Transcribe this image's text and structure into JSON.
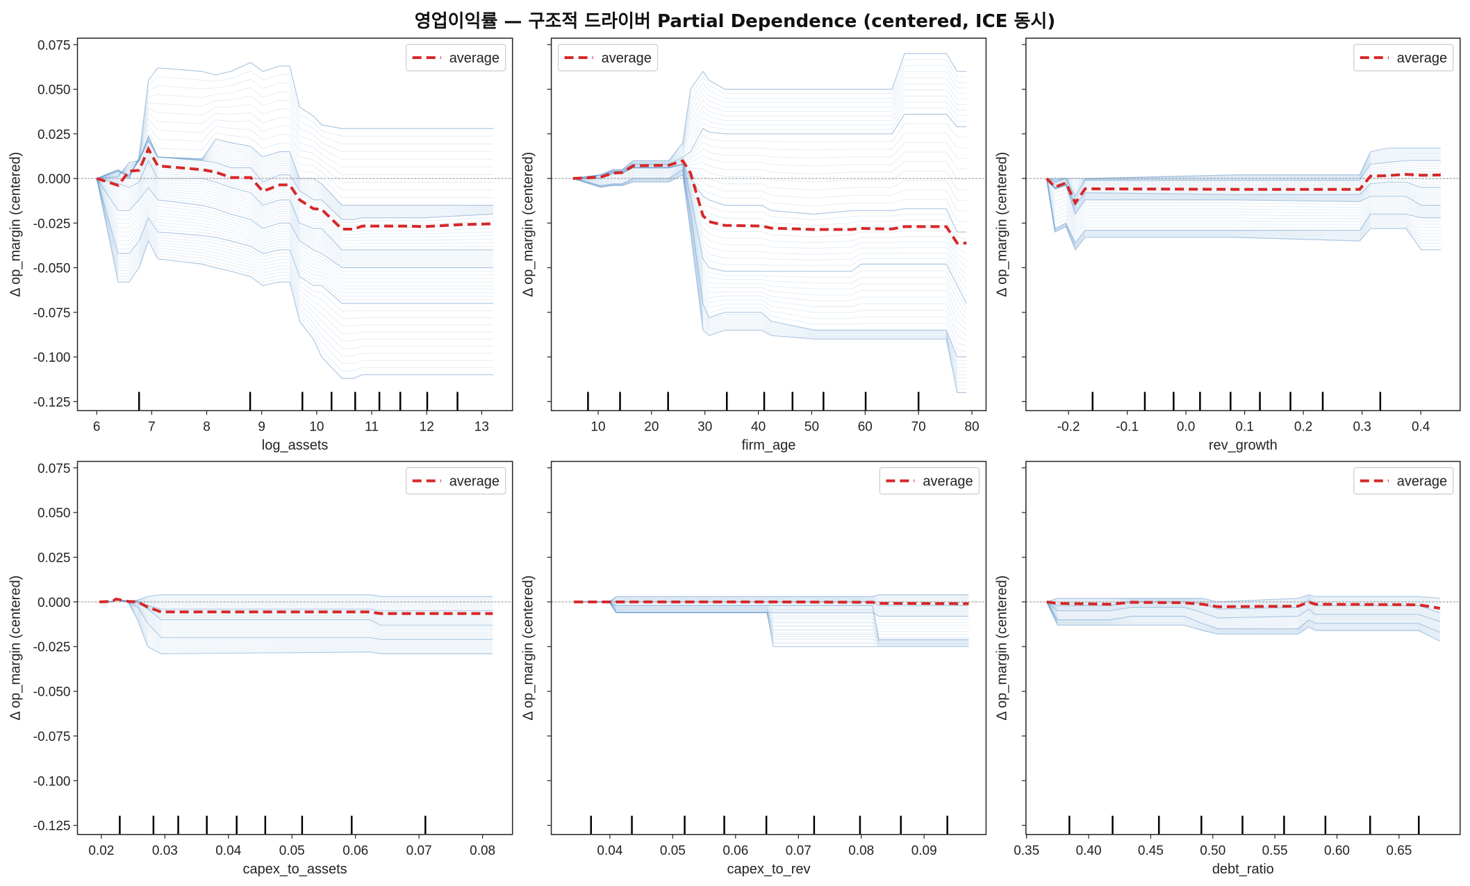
{
  "title": "영업이익률 — 구조적 드라이버 Partial Dependence (centered, ICE 동시)",
  "colors": {
    "ice": "#6699cc",
    "average": "#d62728",
    "zero_line": "#888888",
    "rug": "#000000"
  },
  "chart_data": [
    {
      "type": "line",
      "xlabel": "log_assets",
      "ylabel": "Δ op_margin (centered)",
      "xlim": [
        5.65,
        13.56
      ],
      "ylim": [
        -0.1301,
        0.0786
      ],
      "xticks": [
        6,
        7,
        8,
        9,
        10,
        11,
        12,
        13
      ],
      "xtick_labels": [
        "6",
        "7",
        "8",
        "9",
        "10",
        "11",
        "12",
        "13"
      ],
      "yticks": [
        0.075,
        0.05,
        0.025,
        0,
        -0.025,
        -0.05,
        -0.075,
        -0.1,
        -0.125
      ],
      "ytick_labels": [
        "0.075",
        "0.050",
        "0.025",
        "0.000",
        "-0.025",
        "-0.050",
        "-0.075",
        "-0.100",
        "-0.125"
      ],
      "legend": {
        "label": "average",
        "placement": "upper right"
      },
      "zero_line": true,
      "average": {
        "x": [
          6.0,
          6.39,
          6.59,
          6.77,
          6.94,
          7.11,
          7.92,
          8.16,
          8.44,
          8.8,
          9.02,
          9.33,
          9.51,
          9.69,
          9.94,
          10.09,
          10.46,
          10.67,
          10.83,
          11.59,
          11.96,
          12.57,
          13.21
        ],
        "y": [
          0,
          -0.0039,
          0.0041,
          0.0046,
          0.0165,
          0.0071,
          0.0049,
          0.0036,
          0.0005,
          0.0005,
          -0.0072,
          -0.0036,
          -0.0036,
          -0.012,
          -0.0169,
          -0.0173,
          -0.0284,
          -0.0284,
          -0.0267,
          -0.0267,
          -0.027,
          -0.0259,
          -0.0254
        ]
      },
      "ice_curves": [
        [
          0,
          0.005,
          0,
          0.012,
          0.055,
          0.062,
          0.06,
          0.058,
          0.06,
          0.065,
          0.06,
          0.063,
          0.063,
          0.04,
          0.035,
          0.03,
          0.028,
          0.028,
          0.028,
          0.028,
          0.028,
          0.028,
          0.028
        ],
        [
          0,
          0.004,
          0.002,
          0.01,
          0.024,
          0.012,
          0.011,
          0.022,
          0.02,
          0.018,
          0.012,
          0.015,
          0.015,
          0,
          0,
          -0.003,
          -0.015,
          -0.015,
          -0.015,
          -0.015,
          -0.015,
          -0.015,
          -0.015
        ],
        [
          0,
          0.001,
          0.009,
          0.01,
          0.021,
          0.012,
          0.01,
          0.009,
          0.006,
          0.006,
          -0.002,
          0.002,
          0.002,
          -0.007,
          -0.012,
          -0.012,
          -0.023,
          -0.023,
          -0.022,
          -0.022,
          -0.022,
          -0.021,
          -0.02
        ],
        [
          0,
          -0.003,
          -0.005,
          -0.002,
          0.01,
          0,
          0,
          -0.002,
          -0.005,
          -0.008,
          -0.015,
          -0.012,
          -0.012,
          -0.025,
          -0.028,
          -0.028,
          -0.04,
          -0.04,
          -0.04,
          -0.04,
          -0.04,
          -0.04,
          -0.04
        ],
        [
          0,
          -0.018,
          -0.018,
          -0.012,
          -0.005,
          -0.012,
          -0.015,
          -0.017,
          -0.02,
          -0.023,
          -0.028,
          -0.025,
          -0.025,
          -0.035,
          -0.04,
          -0.042,
          -0.05,
          -0.05,
          -0.05,
          -0.05,
          -0.05,
          -0.05,
          -0.05
        ],
        [
          0,
          -0.042,
          -0.042,
          -0.035,
          -0.022,
          -0.03,
          -0.032,
          -0.033,
          -0.035,
          -0.038,
          -0.042,
          -0.04,
          -0.04,
          -0.055,
          -0.06,
          -0.06,
          -0.07,
          -0.07,
          -0.07,
          -0.07,
          -0.07,
          -0.07,
          -0.07
        ],
        [
          0,
          -0.058,
          -0.058,
          -0.05,
          -0.035,
          -0.045,
          -0.048,
          -0.05,
          -0.052,
          -0.055,
          -0.06,
          -0.058,
          -0.058,
          -0.08,
          -0.09,
          -0.1,
          -0.112,
          -0.112,
          -0.11,
          -0.11,
          -0.11,
          -0.11,
          -0.11
        ]
      ],
      "rug": [
        6.77,
        8.79,
        9.74,
        10.27,
        10.7,
        11.14,
        11.52,
        12.01,
        12.56
      ]
    },
    {
      "type": "line",
      "xlabel": "firm_age",
      "ylabel": "Δ op_margin (centered)",
      "xlim": [
        1.23,
        82.65
      ],
      "ylim": [
        -0.1301,
        0.0786
      ],
      "xticks": [
        10,
        20,
        30,
        40,
        50,
        60,
        70,
        80
      ],
      "xtick_labels": [
        "10",
        "20",
        "30",
        "40",
        "50",
        "60",
        "70",
        "80"
      ],
      "yticks": [
        0.075,
        0.05,
        0.025,
        0,
        -0.025,
        -0.05,
        -0.075,
        -0.1,
        -0.125
      ],
      "legend": {
        "label": "average",
        "placement": "upper left"
      },
      "zero_line": true,
      "average": {
        "x": [
          5.29,
          10.46,
          12.78,
          14.52,
          16.56,
          23.24,
          25.85,
          27.3,
          29.63,
          30.79,
          33.69,
          40.66,
          42.4,
          50.53,
          57.5,
          59.24,
          65.05,
          67.37,
          75.21,
          77.24,
          78.98
        ],
        "y": [
          0,
          0.0007,
          0.003,
          0.0033,
          0.0071,
          0.0074,
          0.0099,
          0.003,
          -0.0209,
          -0.0242,
          -0.0263,
          -0.0267,
          -0.0278,
          -0.0286,
          -0.0286,
          -0.028,
          -0.0283,
          -0.027,
          -0.027,
          -0.0362,
          -0.0362
        ]
      },
      "ice_curves": [
        [
          0,
          0.002,
          0.005,
          0.005,
          0.01,
          0.01,
          0.02,
          0.05,
          0.06,
          0.055,
          0.05,
          0.05,
          0.05,
          0.05,
          0.05,
          0.05,
          0.05,
          0.07,
          0.07,
          0.06,
          0.06
        ],
        [
          0,
          0.002,
          0.004,
          0.004,
          0.008,
          0.008,
          0.012,
          0.015,
          0.028,
          0.026,
          0.025,
          0.025,
          0.025,
          0.025,
          0.025,
          0.025,
          0.025,
          0.036,
          0.036,
          0.029,
          0.029
        ],
        [
          0,
          0,
          0.003,
          0.003,
          0.006,
          0.006,
          0.008,
          0,
          -0.01,
          -0.012,
          -0.015,
          -0.015,
          -0.018,
          -0.02,
          -0.018,
          -0.018,
          -0.018,
          -0.017,
          -0.017,
          -0.03,
          -0.03
        ],
        [
          0,
          0,
          0.003,
          0.003,
          0.006,
          0.006,
          0.008,
          -0.01,
          -0.045,
          -0.05,
          -0.052,
          -0.052,
          -0.052,
          -0.052,
          -0.052,
          -0.048,
          -0.048,
          -0.048,
          -0.048,
          -0.06,
          -0.07
        ],
        [
          0,
          -0.004,
          -0.003,
          -0.003,
          0,
          0,
          0.005,
          -0.02,
          -0.07,
          -0.078,
          -0.075,
          -0.075,
          -0.08,
          -0.085,
          -0.085,
          -0.085,
          -0.085,
          -0.085,
          -0.085,
          -0.1,
          -0.1
        ],
        [
          0,
          -0.005,
          -0.004,
          -0.004,
          -0.002,
          -0.002,
          0.002,
          -0.03,
          -0.085,
          -0.088,
          -0.085,
          -0.085,
          -0.088,
          -0.09,
          -0.09,
          -0.09,
          -0.09,
          -0.09,
          -0.09,
          -0.12,
          -0.12
        ]
      ],
      "rug": [
        8.1,
        14.1,
        23.1,
        34.1,
        41.1,
        46.4,
        52.2,
        60.1,
        70.0
      ]
    },
    {
      "type": "line",
      "xlabel": "rev_growth",
      "ylabel": "Δ op_margin (centered)",
      "xlim": [
        -0.2725,
        0.467
      ],
      "ylim": [
        -0.1301,
        0.0786
      ],
      "xticks": [
        -0.2,
        -0.1,
        0,
        0.1,
        0.2,
        0.3,
        0.4
      ],
      "xtick_labels": [
        "-0.2",
        "-0.1",
        "0.0",
        "0.1",
        "0.2",
        "0.3",
        "0.4"
      ],
      "yticks": [
        0.075,
        0.05,
        0.025,
        0,
        -0.025,
        -0.05,
        -0.075,
        -0.1,
        -0.125
      ],
      "legend": {
        "label": "average",
        "placement": "upper right"
      },
      "zero_line": true,
      "average": {
        "x": [
          -0.2373,
          -0.2231,
          -0.2042,
          -0.1885,
          -0.1717,
          0.082,
          0.2959,
          0.3143,
          0.3432,
          0.3747,
          0.4009,
          0.434
        ],
        "y": [
          0,
          -0.0048,
          -0.0025,
          -0.0137,
          -0.0058,
          -0.0061,
          -0.0061,
          0.0013,
          0.0016,
          0.0023,
          0.0018,
          0.002
        ]
      },
      "ice_curves": [
        [
          0,
          0,
          0,
          0,
          0,
          0.002,
          0.002,
          0.015,
          0.017,
          0.017,
          0.017,
          0.017
        ],
        [
          0,
          -0.002,
          0,
          -0.01,
          -0.001,
          -0.001,
          -0.001,
          0.008,
          0.009,
          0.01,
          0.01,
          0.01
        ],
        [
          0,
          -0.005,
          -0.003,
          -0.015,
          -0.008,
          -0.009,
          -0.009,
          -0.003,
          -0.002,
          -0.002,
          -0.005,
          -0.005
        ],
        [
          0,
          -0.006,
          -0.004,
          -0.02,
          -0.012,
          -0.012,
          -0.013,
          -0.01,
          -0.01,
          -0.01,
          -0.015,
          -0.015
        ],
        [
          0,
          -0.028,
          -0.025,
          -0.036,
          -0.029,
          -0.029,
          -0.029,
          -0.02,
          -0.02,
          -0.02,
          -0.022,
          -0.022
        ],
        [
          0,
          -0.03,
          -0.027,
          -0.04,
          -0.033,
          -0.033,
          -0.035,
          -0.028,
          -0.028,
          -0.028,
          -0.04,
          -0.04
        ]
      ],
      "rug": [
        -0.159,
        -0.07,
        -0.021,
        0.024,
        0.076,
        0.126,
        0.178,
        0.233,
        0.331
      ]
    },
    {
      "type": "line",
      "xlabel": "capex_to_assets",
      "ylabel": "Δ op_margin (centered)",
      "xlim": [
        0.01624,
        0.08471
      ],
      "ylim": [
        -0.1301,
        0.0786
      ],
      "xticks": [
        0.02,
        0.03,
        0.04,
        0.05,
        0.06,
        0.07,
        0.08
      ],
      "xtick_labels": [
        "0.02",
        "0.03",
        "0.04",
        "0.05",
        "0.06",
        "0.07",
        "0.08"
      ],
      "yticks": [
        0.075,
        0.05,
        0.025,
        0,
        -0.025,
        -0.05,
        -0.075,
        -0.1,
        -0.125
      ],
      "ytick_labels": [
        "0.075",
        "0.050",
        "0.025",
        "0.000",
        "-0.025",
        "-0.050",
        "-0.075",
        "-0.100",
        "-0.125"
      ],
      "legend": {
        "label": "average",
        "placement": "upper right"
      },
      "zero_line": true,
      "average": {
        "x": [
          0.0197,
          0.0218,
          0.0223,
          0.0242,
          0.0257,
          0.0273,
          0.0294,
          0.0623,
          0.0639,
          0.0816
        ],
        "y": [
          0,
          0.0003,
          0.0016,
          0.0003,
          0,
          -0.0029,
          -0.0056,
          -0.0056,
          -0.0065,
          -0.0065
        ]
      },
      "ice_curves": [
        [
          0,
          0.0003,
          0.001,
          0.0005,
          0.001,
          0.003,
          0.004,
          0.004,
          0.003,
          0.003
        ],
        [
          0,
          0.0003,
          0.0016,
          0.0003,
          0,
          -0.002,
          -0.004,
          -0.004,
          -0.005,
          -0.005
        ],
        [
          0,
          0.0003,
          0.0016,
          0.0003,
          0,
          -0.004,
          -0.01,
          -0.01,
          -0.013,
          -0.013
        ],
        [
          0,
          0,
          0.001,
          0,
          -0.003,
          -0.012,
          -0.02,
          -0.02,
          -0.021,
          -0.021
        ],
        [
          0,
          0,
          0.001,
          0,
          -0.01,
          -0.025,
          -0.029,
          -0.028,
          -0.029,
          -0.029
        ]
      ],
      "rug": [
        0.0229,
        0.0282,
        0.0321,
        0.0366,
        0.0413,
        0.0458,
        0.0516,
        0.0594,
        0.071
      ]
    },
    {
      "type": "line",
      "xlabel": "capex_to_rev",
      "ylabel": "Δ op_margin (centered)",
      "xlim": [
        0.03068,
        0.09986
      ],
      "ylim": [
        -0.1301,
        0.0786
      ],
      "xticks": [
        0.04,
        0.05,
        0.06,
        0.07,
        0.08,
        0.09
      ],
      "xtick_labels": [
        "0.04",
        "0.05",
        "0.06",
        "0.07",
        "0.08",
        "0.09"
      ],
      "yticks": [
        0.075,
        0.05,
        0.025,
        0,
        -0.025,
        -0.05,
        -0.075,
        -0.1,
        -0.125
      ],
      "legend": {
        "label": "average",
        "placement": "upper right"
      },
      "zero_line": true,
      "average": {
        "x": [
          0.0343,
          0.0399,
          0.041,
          0.065,
          0.066,
          0.0818,
          0.0828,
          0.0971
        ],
        "y": [
          0,
          0,
          0,
          0,
          0,
          -0.0002,
          -0.0008,
          -0.001
        ]
      },
      "ice_curves": [
        [
          0,
          0,
          0.003,
          0.003,
          0.003,
          0.003,
          0.004,
          0.004
        ],
        [
          0,
          0,
          0,
          0,
          0,
          0,
          -0.002,
          -0.002
        ],
        [
          0,
          0,
          -0.006,
          -0.006,
          -0.006,
          -0.006,
          -0.008,
          -0.008
        ],
        [
          0,
          0,
          -0.006,
          -0.006,
          -0.025,
          -0.025,
          -0.025,
          -0.025
        ],
        [
          0,
          0,
          -0.002,
          -0.002,
          -0.002,
          -0.002,
          -0.021,
          -0.021
        ]
      ],
      "rug": [
        0.037,
        0.0435,
        0.0519,
        0.0582,
        0.0649,
        0.0725,
        0.0798,
        0.0863,
        0.0937
      ]
    },
    {
      "type": "line",
      "xlabel": "debt_ratio",
      "ylabel": "Δ op_margin (centered)",
      "xlim": [
        0.3495,
        0.6992
      ],
      "ylim": [
        -0.1301,
        0.0786
      ],
      "xticks": [
        0.35,
        0.4,
        0.45,
        0.5,
        0.55,
        0.6,
        0.65
      ],
      "xtick_labels": [
        "0.35",
        "0.40",
        "0.45",
        "0.50",
        "0.55",
        "0.60",
        "0.65"
      ],
      "yticks": [
        0.075,
        0.05,
        0.025,
        0,
        -0.025,
        -0.05,
        -0.075,
        -0.1,
        -0.125
      ],
      "legend": {
        "label": "average",
        "placement": "upper right"
      },
      "zero_line": true,
      "average": {
        "x": [
          0.3662,
          0.3749,
          0.4171,
          0.4345,
          0.4768,
          0.4917,
          0.5041,
          0.5687,
          0.5774,
          0.5824,
          0.6656,
          0.683
        ],
        "y": [
          0,
          -0.0008,
          -0.0013,
          -0.0002,
          -0.0005,
          -0.0013,
          -0.0027,
          -0.0024,
          0,
          -0.0013,
          -0.0016,
          -0.0036
        ]
      },
      "ice_curves": [
        [
          0,
          0.002,
          0.002,
          0.002,
          0.002,
          0.002,
          0,
          0.002,
          0.004,
          0.003,
          0.003,
          0.002
        ],
        [
          0,
          -0.002,
          -0.002,
          0,
          0,
          -0.001,
          -0.004,
          -0.003,
          0.001,
          -0.002,
          -0.002,
          -0.006
        ],
        [
          0,
          -0.005,
          -0.005,
          -0.003,
          -0.003,
          -0.006,
          -0.009,
          -0.008,
          -0.004,
          -0.007,
          -0.007,
          -0.011
        ],
        [
          0,
          -0.01,
          -0.01,
          -0.008,
          -0.008,
          -0.012,
          -0.015,
          -0.015,
          -0.01,
          -0.012,
          -0.012,
          -0.017
        ],
        [
          0,
          -0.013,
          -0.013,
          -0.013,
          -0.013,
          -0.016,
          -0.018,
          -0.018,
          -0.014,
          -0.016,
          -0.016,
          -0.022
        ]
      ],
      "rug": [
        0.3845,
        0.4193,
        0.4566,
        0.4908,
        0.5239,
        0.5574,
        0.5907,
        0.6267,
        0.6659
      ]
    }
  ]
}
